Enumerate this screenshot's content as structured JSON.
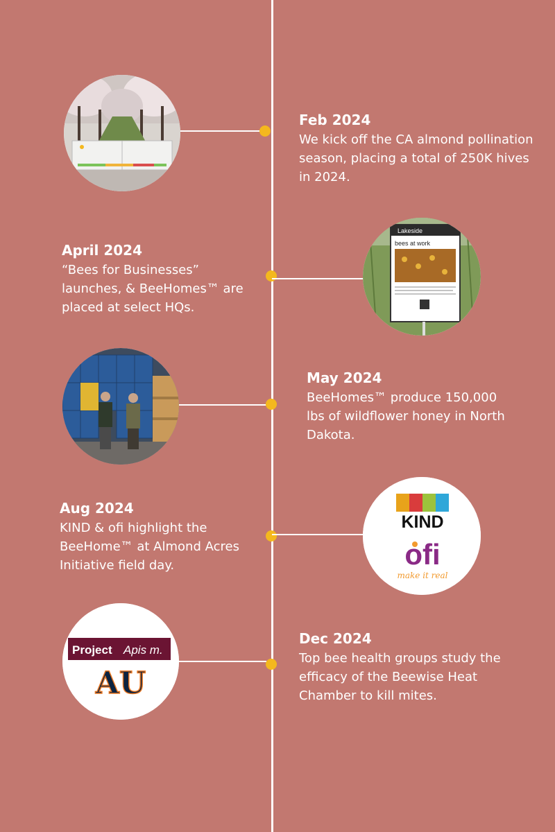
{
  "colors": {
    "background": "#c27870",
    "line": "#ffffff",
    "dot": "#f4b81e"
  },
  "events": [
    {
      "date": "Feb 2024",
      "description": "We kick off the CA almond pollination season, placing a total of 250K hives in 2024.",
      "image": "almond-orchard-beehome-photo"
    },
    {
      "date": "April 2024",
      "description": "“Bees for Businesses” launches, & BeeHomes™ are placed at select HQs.",
      "image": "bees-at-work-sign-photo"
    },
    {
      "date": "May 2024",
      "description": "BeeHomes™ produce 150,000 lbs of wildflower honey in North Dakota.",
      "image": "honey-barrels-photo"
    },
    {
      "date": "Aug 2024",
      "description": "KIND & ofi highlight the BeeHome™ at Almond Acres Initiative field day.",
      "image": "kind-ofi-logos"
    },
    {
      "date": "Dec 2024",
      "description": "Top bee health groups study the efficacy of the Beewise Heat Chamber to kill mites.",
      "image": "project-apis-auburn-logos"
    }
  ],
  "logos": {
    "kind": "KIND",
    "ofi": "ofi",
    "ofi_tagline": "make it real",
    "project_apis": "Project",
    "project_apis_italic": "Apis m.",
    "auburn": "AU",
    "sign_brand": "Lakeside",
    "sign_title": "bees at work"
  }
}
